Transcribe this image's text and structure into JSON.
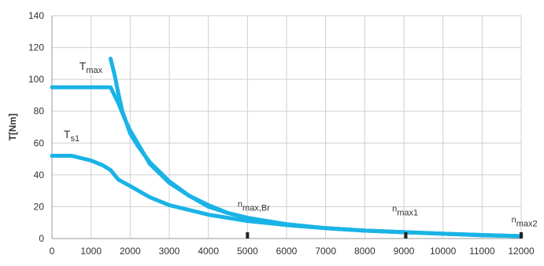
{
  "chart_data": {
    "type": "line",
    "title": "",
    "xlabel": "",
    "ylabel": "T[Nm]",
    "xlim": [
      0,
      12000
    ],
    "ylim": [
      0,
      140
    ],
    "grid": true,
    "x_ticks": [
      "0",
      "1000",
      "2000",
      "3000",
      "4000",
      "5000",
      "6000",
      "7000",
      "8000",
      "9000",
      "10000",
      "11000",
      "12000"
    ],
    "y_ticks": [
      "0",
      "20",
      "40",
      "60",
      "80",
      "100",
      "120",
      "140"
    ],
    "line_color": "#1ab3e6",
    "series": [
      {
        "name": "Tmax",
        "points": [
          [
            1500,
            113
          ],
          [
            1600,
            103
          ],
          [
            1700,
            91
          ],
          [
            1800,
            80
          ],
          [
            1900,
            73
          ],
          [
            2000,
            66
          ],
          [
            2200,
            58
          ],
          [
            2500,
            48
          ],
          [
            3000,
            36
          ],
          [
            3500,
            27
          ],
          [
            4000,
            20
          ],
          [
            4500,
            16
          ],
          [
            5000,
            13
          ],
          [
            5500,
            10.5
          ],
          [
            6000,
            8.5
          ],
          [
            7000,
            6.5
          ],
          [
            8000,
            5
          ],
          [
            9000,
            4
          ],
          [
            10000,
            3
          ],
          [
            11000,
            2.2
          ],
          [
            12000,
            1.5
          ]
        ]
      },
      {
        "name": "",
        "points": [
          [
            0,
            95
          ],
          [
            1000,
            95
          ],
          [
            1500,
            95
          ],
          [
            1700,
            85
          ],
          [
            1900,
            73
          ],
          [
            2000,
            68
          ],
          [
            2500,
            47
          ],
          [
            3000,
            35
          ],
          [
            3500,
            27
          ],
          [
            4000,
            21
          ],
          [
            4500,
            16
          ],
          [
            5000,
            13
          ],
          [
            6000,
            9
          ],
          [
            7000,
            6.5
          ],
          [
            8000,
            5
          ],
          [
            9000,
            4
          ],
          [
            10000,
            3
          ],
          [
            11000,
            2.2
          ],
          [
            12000,
            1.5
          ]
        ]
      },
      {
        "name": "Ts1",
        "points": [
          [
            0,
            52
          ],
          [
            500,
            52
          ],
          [
            1000,
            49
          ],
          [
            1300,
            46
          ],
          [
            1500,
            43
          ],
          [
            1700,
            37
          ],
          [
            2000,
            33
          ],
          [
            2500,
            26
          ],
          [
            3000,
            21
          ],
          [
            3500,
            18
          ],
          [
            4000,
            15
          ],
          [
            4500,
            13
          ],
          [
            5000,
            11
          ],
          [
            6000,
            8.5
          ],
          [
            7000,
            6.5
          ],
          [
            8000,
            5
          ],
          [
            9000,
            4
          ],
          [
            10000,
            3
          ],
          [
            11000,
            2
          ],
          [
            12000,
            1.5
          ]
        ]
      }
    ],
    "annotations": [
      {
        "key": "tmax",
        "main": "T",
        "sub": "max",
        "x": 700,
        "y": 106
      },
      {
        "key": "ts1",
        "main": "T",
        "sub": "s1",
        "x": 300,
        "y": 63
      },
      {
        "key": "nmaxbr",
        "main": "",
        "sub": "n",
        "sub2": "max,Br",
        "x": 4750,
        "y": 19
      },
      {
        "key": "nmax1",
        "main": "",
        "sub": "n",
        "sub2": "max1",
        "x": 8700,
        "y": 16
      },
      {
        "key": "nmax2",
        "main": "",
        "sub": "n",
        "sub2": "max2",
        "x": 11750,
        "y": 9
      }
    ],
    "markers": [
      {
        "name": "nmax,Br",
        "x": 5000,
        "y": 2
      },
      {
        "name": "nmax1",
        "x": 9050,
        "y": 2
      },
      {
        "name": "nmax2",
        "x": 12000,
        "y": 2
      }
    ]
  }
}
